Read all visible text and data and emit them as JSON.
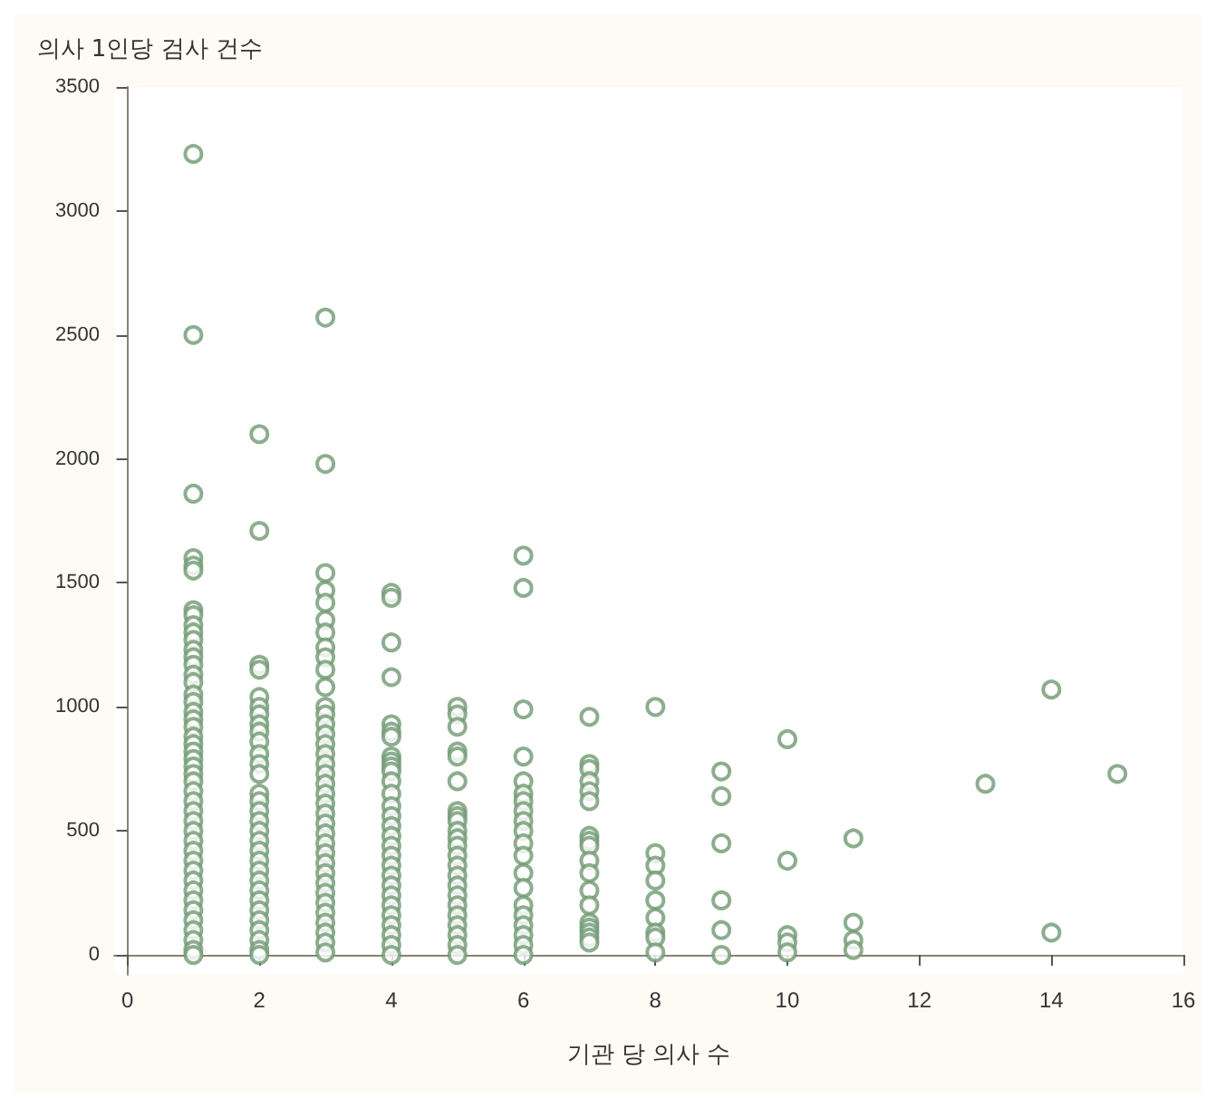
{
  "chart_data": {
    "type": "scatter",
    "xlabel": "기관 당 의사 수",
    "ylabel": "의사 1인당 검사 건수",
    "x": [
      1,
      1,
      1,
      1,
      1,
      1,
      1,
      1,
      1,
      1,
      1,
      1,
      1,
      1,
      1,
      1,
      1,
      1,
      1,
      1,
      1,
      1,
      1,
      1,
      1,
      1,
      1,
      1,
      1,
      1,
      1,
      1,
      1,
      1,
      1,
      1,
      1,
      1,
      1,
      1,
      1,
      1,
      1,
      1,
      1,
      1,
      2,
      2,
      2,
      2,
      2,
      2,
      2,
      2,
      2,
      2,
      2,
      2,
      2,
      2,
      2,
      2,
      2,
      2,
      2,
      2,
      2,
      2,
      2,
      2,
      2,
      2,
      2,
      2,
      2,
      2,
      2,
      3,
      3,
      3,
      3,
      3,
      3,
      3,
      3,
      3,
      3,
      3,
      3,
      3,
      3,
      3,
      3,
      3,
      3,
      3,
      3,
      3,
      3,
      3,
      3,
      3,
      3,
      3,
      3,
      3,
      3,
      3,
      3,
      3,
      3,
      3,
      3,
      3,
      4,
      4,
      4,
      4,
      4,
      4,
      4,
      4,
      4,
      4,
      4,
      4,
      4,
      4,
      4,
      4,
      4,
      4,
      4,
      4,
      4,
      4,
      4,
      4,
      4,
      4,
      4,
      4,
      4,
      5,
      5,
      5,
      5,
      5,
      5,
      5,
      5,
      5,
      5,
      5,
      5,
      5,
      5,
      5,
      5,
      5,
      5,
      5,
      5,
      5,
      5,
      5,
      6,
      6,
      6,
      6,
      6,
      6,
      6,
      6,
      6,
      6,
      6,
      6,
      6,
      6,
      6,
      6,
      6,
      6,
      6,
      6,
      7,
      7,
      7,
      7,
      7,
      7,
      7,
      7,
      7,
      7,
      7,
      7,
      7,
      7,
      7,
      7,
      7,
      7,
      8,
      8,
      8,
      8,
      8,
      8,
      8,
      8,
      8,
      9,
      9,
      9,
      9,
      9,
      9,
      10,
      10,
      10,
      10,
      10,
      11,
      11,
      11,
      11,
      13,
      14,
      14,
      15
    ],
    "values": [
      3230,
      2500,
      1860,
      1600,
      1570,
      1550,
      1390,
      1370,
      1330,
      1300,
      1270,
      1230,
      1200,
      1170,
      1130,
      1100,
      1050,
      1020,
      980,
      950,
      920,
      880,
      850,
      820,
      790,
      760,
      730,
      700,
      660,
      620,
      580,
      540,
      500,
      460,
      420,
      380,
      340,
      300,
      260,
      220,
      180,
      140,
      100,
      60,
      20,
      0,
      2100,
      1710,
      1170,
      1150,
      1040,
      1000,
      970,
      930,
      900,
      860,
      810,
      770,
      730,
      650,
      620,
      580,
      540,
      500,
      460,
      420,
      380,
      340,
      300,
      260,
      220,
      180,
      140,
      100,
      60,
      20,
      0,
      2570,
      1980,
      1540,
      1470,
      1420,
      1350,
      1300,
      1240,
      1200,
      1150,
      1080,
      1000,
      970,
      930,
      890,
      850,
      810,
      770,
      730,
      690,
      650,
      610,
      570,
      530,
      490,
      450,
      410,
      370,
      330,
      290,
      250,
      210,
      170,
      130,
      90,
      50,
      10,
      1460,
      1440,
      1260,
      1120,
      930,
      900,
      880,
      800,
      780,
      760,
      740,
      700,
      650,
      600,
      560,
      520,
      480,
      440,
      400,
      360,
      320,
      280,
      240,
      200,
      160,
      120,
      80,
      40,
      0,
      1000,
      970,
      920,
      820,
      800,
      700,
      580,
      560,
      540,
      500,
      470,
      440,
      400,
      360,
      320,
      280,
      240,
      200,
      160,
      120,
      80,
      40,
      0,
      1610,
      1480,
      990,
      800,
      700,
      650,
      620,
      580,
      540,
      500,
      450,
      400,
      330,
      270,
      200,
      160,
      120,
      80,
      40,
      0,
      960,
      770,
      750,
      700,
      660,
      620,
      480,
      460,
      440,
      380,
      330,
      260,
      200,
      130,
      110,
      90,
      70,
      50,
      1000,
      410,
      360,
      300,
      220,
      150,
      90,
      70,
      10,
      740,
      640,
      450,
      220,
      100,
      0,
      870,
      380,
      80,
      50,
      10,
      470,
      130,
      60,
      20,
      690,
      1070,
      90,
      730
    ],
    "color": "#6f9a72",
    "marker": "circle",
    "xlim": [
      -0.2,
      16
    ],
    "xticks": [
      0,
      2,
      4,
      6,
      8,
      10,
      12,
      14,
      16
    ],
    "ylim": [
      -80,
      3500
    ],
    "yticks": [
      0,
      500,
      1000,
      1500,
      2000,
      2500,
      3000,
      3500
    ]
  }
}
